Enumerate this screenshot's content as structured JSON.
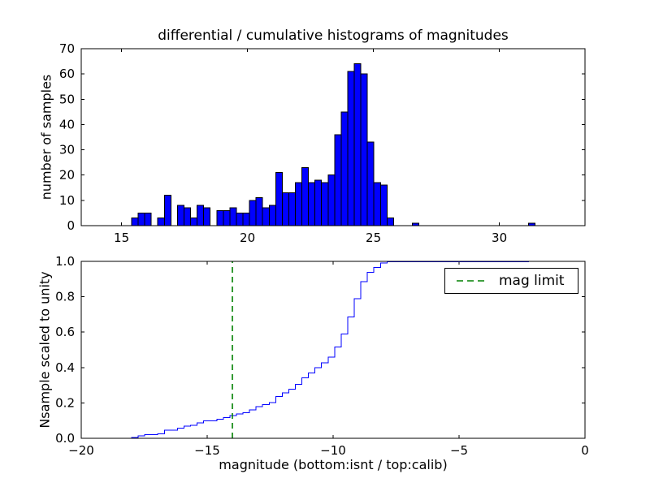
{
  "chart_data": [
    {
      "type": "bar",
      "name": "differential-histogram",
      "title": "differential / cumulative histograms of magnitudes",
      "ylabel": "number of samples",
      "xlim": [
        13.4,
        33.4
      ],
      "ylim": [
        0,
        70
      ],
      "xticks": [
        15,
        20,
        25,
        30
      ],
      "yticks": [
        0,
        10,
        20,
        30,
        40,
        50,
        60,
        70
      ],
      "bar_color": "#0000ff",
      "bar_edge_color": "#000000",
      "bin_start": 15.4,
      "bin_width": 0.26,
      "counts": [
        3,
        5,
        5,
        0,
        3,
        12,
        0,
        8,
        7,
        3,
        8,
        7,
        0,
        6,
        6,
        7,
        5,
        5,
        10,
        11,
        7,
        8,
        21,
        13,
        13,
        17,
        23,
        17,
        18,
        17,
        20,
        36,
        45,
        61,
        64,
        60,
        33,
        17,
        16,
        3
      ],
      "extra_bars": [
        {
          "left": 26.55,
          "count": 1
        },
        {
          "left": 31.15,
          "count": 1
        }
      ]
    },
    {
      "type": "line",
      "name": "cumulative-histogram",
      "xlabel": "magnitude (bottom:isnt / top:calib)",
      "ylabel": "Nsample scaled to unity",
      "xlim": [
        -20,
        0
      ],
      "ylim": [
        0.0,
        1.0
      ],
      "xticks": [
        -20,
        -15,
        -10,
        -5,
        0
      ],
      "yticks": [
        0.0,
        0.2,
        0.4,
        0.6,
        0.8,
        1.0
      ],
      "line_color": "#0000ff",
      "magnitude_offset": -33.4,
      "mag_limit": {
        "x": -14,
        "color": "#008000",
        "line_style": "dashed",
        "label": "mag limit"
      },
      "legend": {
        "position": "upper right",
        "entries": [
          "mag limit"
        ]
      }
    }
  ],
  "figure": {
    "background": "#ffffff",
    "axis_color": "#000000"
  }
}
